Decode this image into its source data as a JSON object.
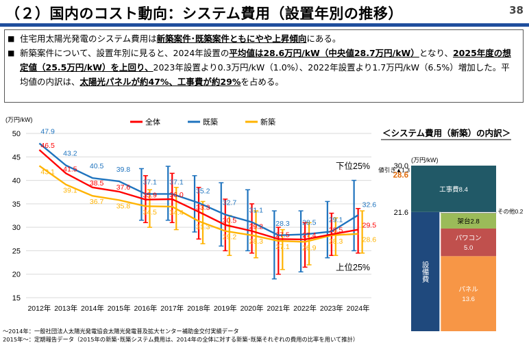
{
  "header": {
    "title": "（２）国内のコスト動向：システム費用（設置年別の推移）",
    "page_number": "38"
  },
  "summary": {
    "bullet_marker": "■",
    "b1_pre": "住宅用太陽光発電のシステム費用は",
    "b1_em": "新築案件･既築案件ともにやや上昇傾向",
    "b1_post": "にある。",
    "b2_p1": "新築案件について、設置年別に見ると、2024年設置の",
    "b2_e1": "平均値は28.6万円/kW（中央値28.7万円/kW）",
    "b2_p2": "となり、",
    "b2_e2": "2025年度の想定値（25.5万円/kW）を上回り、",
    "b2_p3": "2023年設置より0.3万円/kW（1.0%）、2022年設置より1.7万円/kW（6.5%）増加した。平均値の内訳は、",
    "b2_e3": "太陽光パネルが約47%、工事費が約29%",
    "b2_p4": "を占める。"
  },
  "chart_data": [
    {
      "type": "line",
      "ylabel": "(万円/kW)",
      "ylim": [
        15,
        50
      ],
      "y_ticks": [
        15,
        20,
        25,
        30,
        35,
        40,
        45,
        50
      ],
      "x": [
        "2012年",
        "2013年",
        "2014年",
        "2015年",
        "2016年",
        "2017年",
        "2018年",
        "2019年",
        "2020年",
        "2021年",
        "2022年",
        "2023年",
        "2024年"
      ],
      "legend_position": "top",
      "series": [
        {
          "name": "全体",
          "color": "#ff0000",
          "values": [
            46.5,
            41.5,
            38.5,
            37.6,
            35.9,
            36.0,
            33.3,
            30.5,
            29.2,
            27.5,
            27.4,
            28.5,
            29.5
          ],
          "labels": [
            "46.5",
            "41.5",
            "38.5",
            "37.6",
            "35.9",
            "36.0",
            "33.3",
            "30.5",
            "29.2",
            "27.5",
            "27.4",
            "28.5",
            "29.5"
          ]
        },
        {
          "name": "既築",
          "color": "#1e73be",
          "values": [
            47.9,
            43.2,
            40.5,
            39.8,
            37.1,
            37.1,
            35.2,
            32.7,
            31.1,
            28.3,
            28.5,
            29.1,
            32.6
          ],
          "labels": [
            "47.9",
            "43.2",
            "40.5",
            "39.8",
            "37.1",
            "37.1",
            "35.2",
            "32.7",
            "31.1",
            "28.3",
            "28.5",
            "29.1",
            "32.6"
          ]
        },
        {
          "name": "新築",
          "color": "#ffb300",
          "values": [
            43.1,
            39.1,
            36.7,
            35.8,
            34.5,
            34.4,
            31.3,
            29.2,
            28.3,
            27.1,
            26.9,
            28.3,
            28.6
          ],
          "labels": [
            "43.1",
            "39.1",
            "36.7",
            "35.8",
            "34.5",
            "34.4",
            "31.3",
            "29.2",
            "28.3",
            "27.1",
            "26.9",
            "28.3",
            "28.6"
          ]
        }
      ],
      "range_bars": {
        "start_index": 4,
        "series": [
          {
            "name": "既築",
            "color": "#1e73be",
            "low": [
              31.5,
              31.5,
              29.0,
              26.0,
              25.0,
              19.0,
              20.5,
              23.5,
              25.0
            ],
            "high": [
              42.5,
              43.0,
              41.0,
              39.5,
              38.0,
              33.5,
              33.5,
              35.5,
              40.0
            ]
          },
          {
            "name": "全体",
            "color": "#ff0000",
            "low": [
              31.0,
              31.0,
              27.5,
              25.0,
              24.5,
              20.0,
              21.5,
              24.0,
              24.5
            ],
            "high": [
              41.0,
              41.5,
              38.5,
              36.0,
              35.0,
              30.0,
              31.0,
              33.0,
              34.0
            ]
          },
          {
            "name": "新築",
            "color": "#ffb300",
            "low": [
              30.0,
              29.5,
              26.5,
              24.0,
              23.5,
              21.0,
              22.0,
              24.0,
              24.5
            ],
            "high": [
              38.0,
              38.5,
              35.5,
              32.5,
              33.5,
              29.5,
              31.0,
              32.0,
              33.5
            ]
          }
        ]
      },
      "annotations": {
        "upper": "下位25%",
        "lower": "上位25%"
      }
    },
    {
      "type": "bar",
      "title": "＜システム費用（新築）の内訳＞",
      "ylabel": "(万円/kW)",
      "total": 28.6,
      "reference_value": "30.0",
      "equipment_level": "21.6",
      "discount_label": "値引き▲1.3",
      "total_label": "28.6",
      "other_label": "その他0.2",
      "segments": [
        {
          "name": "パネル",
          "value": 13.6,
          "label": "13.6",
          "color": "#f79646"
        },
        {
          "name": "パワコン",
          "value": 5.0,
          "label": "5.0",
          "color": "#c0504d"
        },
        {
          "name": "架台",
          "value": 2.8,
          "label": "架台2.8",
          "color": "#9bbb59"
        },
        {
          "name": "その他",
          "value": 0.2,
          "color": "#ffffff"
        },
        {
          "name": "工事費",
          "value": 8.4,
          "label": "工事費8.4",
          "color": "#215967"
        }
      ],
      "equipment": {
        "label": "設備費",
        "value": 21.6,
        "color": "#1f497d"
      }
    }
  ],
  "footnotes": [
    "～2014年：一般社団法人太陽光発電協会太陽光発電普及拡大センター補助金交付実績データ",
    "2015年～：定期報告データ（2015年の新築･既築システム費用は、2014年の全体に対する新築･既築それぞれの費用の比率を用いて推計）"
  ]
}
